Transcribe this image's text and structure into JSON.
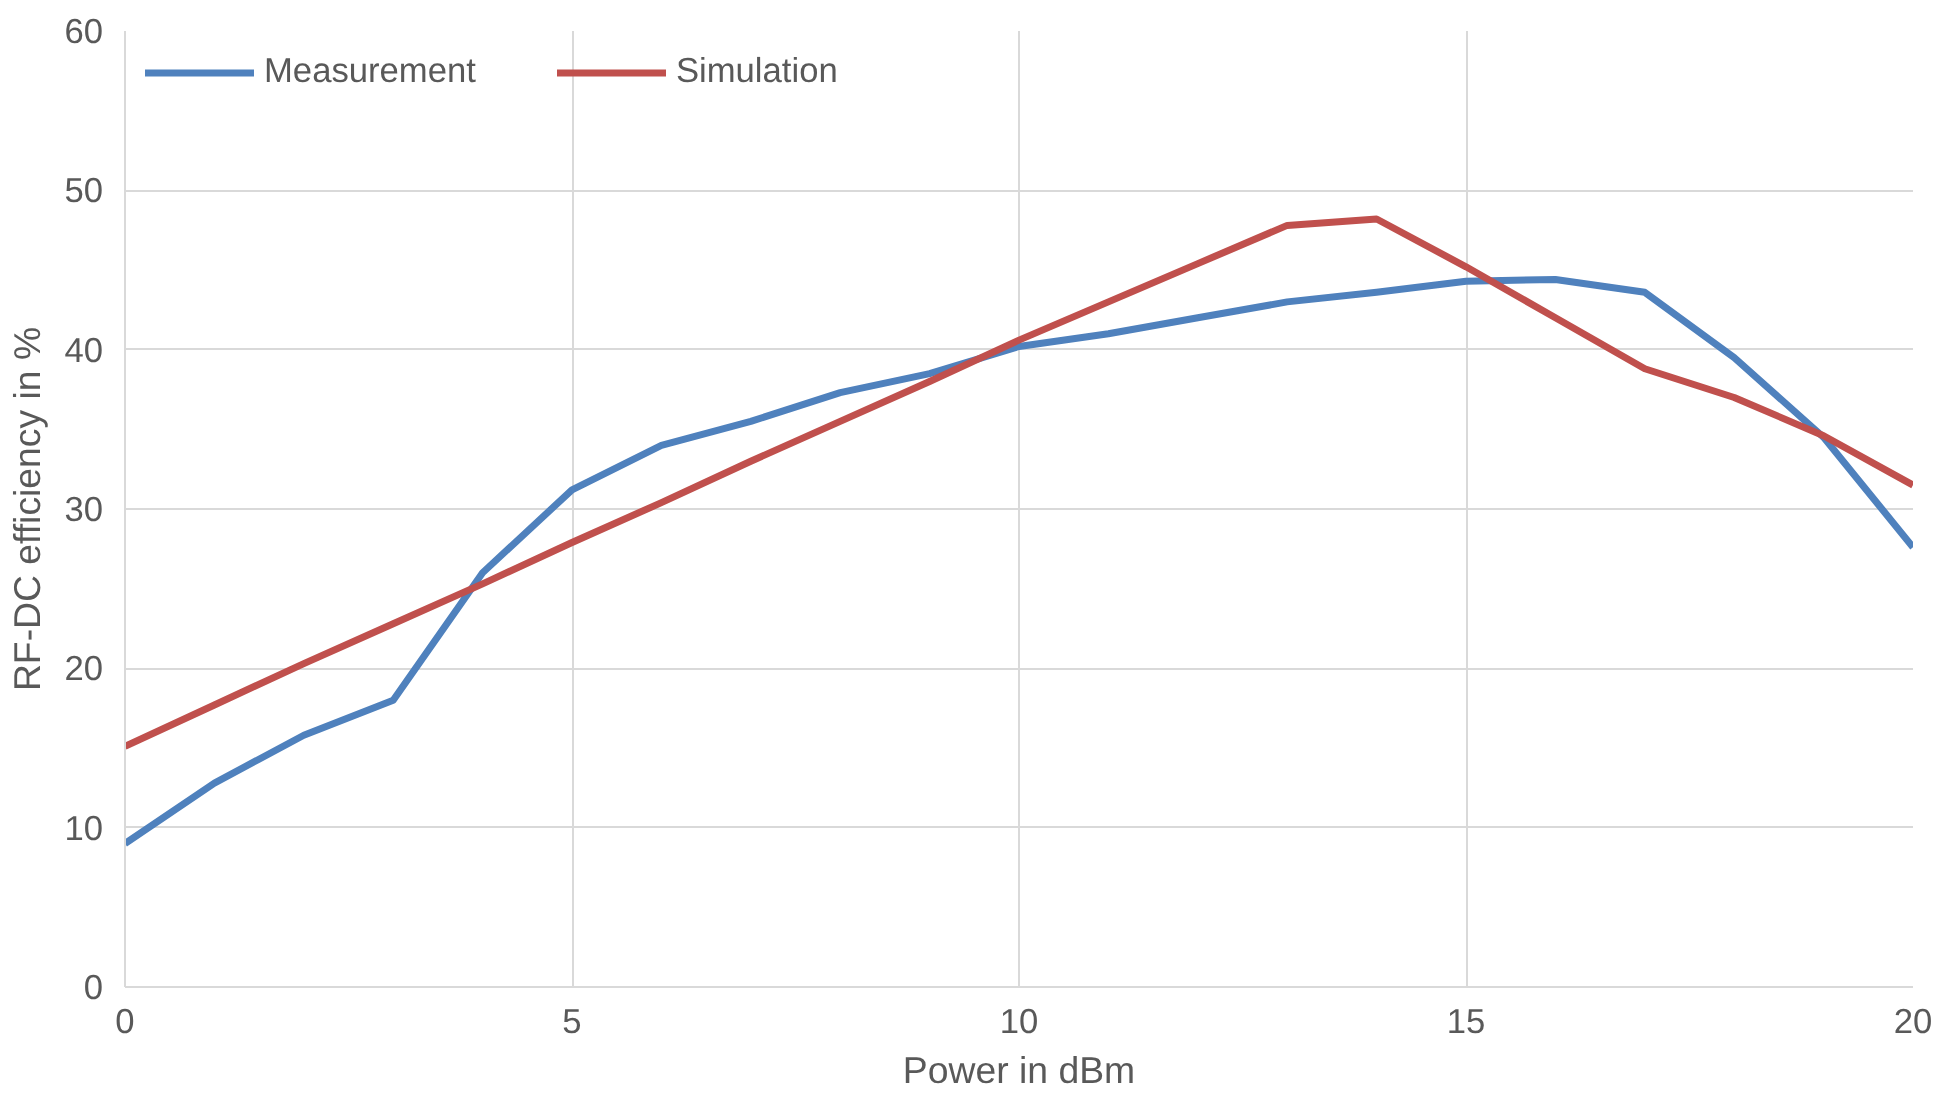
{
  "chart_data": {
    "type": "line",
    "xlabel": "Power in dBm",
    "ylabel": "RF-DC efficiency in %",
    "x": [
      0,
      1,
      2,
      3,
      4,
      5,
      6,
      7,
      8,
      9,
      10,
      11,
      12,
      13,
      14,
      15,
      16,
      17,
      18,
      19,
      20
    ],
    "xlim": [
      0,
      20
    ],
    "xticks": [
      0,
      5,
      10,
      15,
      20
    ],
    "ylim": [
      0,
      60
    ],
    "yticks": [
      0,
      10,
      20,
      30,
      40,
      50,
      60
    ],
    "grid": true,
    "legend": "top left",
    "marker": "none",
    "line_style": "solid",
    "series": [
      {
        "name": "Measurement",
        "color": "#4f81bd",
        "values": [
          9,
          12.8,
          15.8,
          18,
          26,
          31.2,
          34,
          35.5,
          37.3,
          38.5,
          40.2,
          41,
          42,
          43,
          43.6,
          44.3,
          44.4,
          43.6,
          39.5,
          34.5,
          27.6
        ]
      },
      {
        "name": "Simulation",
        "color": "#c0504d",
        "values": [
          15.1,
          17.7,
          20.3,
          22.8,
          25.3,
          27.9,
          30.4,
          33,
          35.5,
          38,
          40.6,
          43,
          45.4,
          47.8,
          48.2,
          45.2,
          42,
          38.8,
          37,
          34.6,
          31.5
        ]
      }
    ]
  }
}
